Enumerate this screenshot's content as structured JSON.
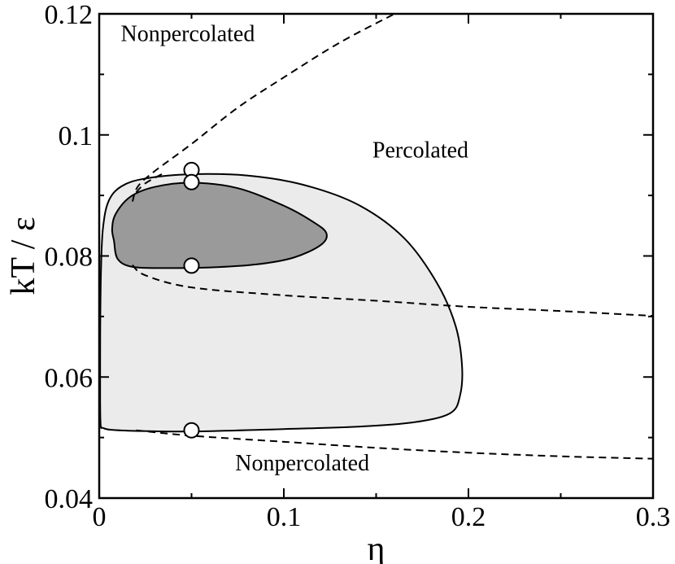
{
  "chart_data": {
    "type": "line",
    "xlabel": "η",
    "ylabel": "kT / ε",
    "xlim": [
      0,
      0.3
    ],
    "ylim": [
      0.04,
      0.12
    ],
    "xticks": [
      "0",
      "0.1",
      "0.2",
      "0.3"
    ],
    "yticks": [
      "0.04",
      "0.06",
      "0.08",
      "0.1",
      "0.12"
    ],
    "annotations": [
      {
        "text": "Nonpercolated",
        "x": 0.048,
        "y": 0.1155
      },
      {
        "text": "Percolated",
        "x": 0.174,
        "y": 0.0963
      },
      {
        "text": "Nonpercolated",
        "x": 0.11,
        "y": 0.0446
      }
    ],
    "series": [
      {
        "role": "outer-region-boundary",
        "style": "solid",
        "fill": "#ebebeb",
        "points": [
          [
            0.0008,
            0.052
          ],
          [
            0.0005,
            0.056
          ],
          [
            0.0005,
            0.062
          ],
          [
            0.0006,
            0.07
          ],
          [
            0.001,
            0.078
          ],
          [
            0.002,
            0.0845
          ],
          [
            0.005,
            0.089
          ],
          [
            0.012,
            0.0915
          ],
          [
            0.025,
            0.0928
          ],
          [
            0.05,
            0.0935
          ],
          [
            0.08,
            0.0933
          ],
          [
            0.11,
            0.0918
          ],
          [
            0.14,
            0.0885
          ],
          [
            0.165,
            0.083
          ],
          [
            0.183,
            0.0755
          ],
          [
            0.193,
            0.0685
          ],
          [
            0.1965,
            0.062
          ],
          [
            0.1955,
            0.057
          ],
          [
            0.19,
            0.054
          ],
          [
            0.17,
            0.0525
          ],
          [
            0.14,
            0.0518
          ],
          [
            0.1,
            0.0514
          ],
          [
            0.05,
            0.051
          ],
          [
            0.02,
            0.0511
          ],
          [
            0.006,
            0.0513
          ],
          [
            0.002,
            0.0516
          ],
          [
            0.0008,
            0.052
          ]
        ]
      },
      {
        "role": "inner-region-boundary",
        "style": "solid",
        "fill": "#9a9a9a",
        "points": [
          [
            0.008,
            0.0825
          ],
          [
            0.007,
            0.0845
          ],
          [
            0.009,
            0.087
          ],
          [
            0.017,
            0.0898
          ],
          [
            0.03,
            0.0914
          ],
          [
            0.05,
            0.0921
          ],
          [
            0.075,
            0.0912
          ],
          [
            0.1,
            0.0883
          ],
          [
            0.115,
            0.0858
          ],
          [
            0.123,
            0.0838
          ],
          [
            0.12,
            0.0818
          ],
          [
            0.105,
            0.0797
          ],
          [
            0.085,
            0.0786
          ],
          [
            0.06,
            0.0781
          ],
          [
            0.035,
            0.078
          ],
          [
            0.018,
            0.0782
          ],
          [
            0.01,
            0.0795
          ],
          [
            0.008,
            0.0825
          ]
        ]
      },
      {
        "role": "upper-dashed-curve",
        "style": "dashed",
        "points": [
          [
            0.018,
            0.089
          ],
          [
            0.021,
            0.0915
          ],
          [
            0.03,
            0.094
          ],
          [
            0.05,
            0.0985
          ],
          [
            0.075,
            0.1045
          ],
          [
            0.1,
            0.1095
          ],
          [
            0.13,
            0.1152
          ],
          [
            0.16,
            0.12
          ]
        ]
      },
      {
        "role": "middle-dashed-curve",
        "style": "dashed",
        "points": [
          [
            0.02,
            0.0905
          ],
          [
            0.025,
            0.092
          ],
          [
            0.035,
            0.0937
          ]
        ]
      },
      {
        "role": "lower-left-dashed-curve",
        "style": "dashed",
        "points": [
          [
            0.018,
            0.0785
          ],
          [
            0.025,
            0.0768
          ],
          [
            0.05,
            0.0748
          ],
          [
            0.1,
            0.0735
          ],
          [
            0.15,
            0.0726
          ],
          [
            0.2,
            0.0716
          ],
          [
            0.25,
            0.0709
          ],
          [
            0.3,
            0.0701
          ]
        ]
      },
      {
        "role": "bottom-dashed-curve",
        "style": "dashed",
        "points": [
          [
            0.02,
            0.0512
          ],
          [
            0.05,
            0.0503
          ],
          [
            0.1,
            0.0493
          ],
          [
            0.15,
            0.0483
          ],
          [
            0.2,
            0.0475
          ],
          [
            0.25,
            0.0469
          ],
          [
            0.3,
            0.0465
          ]
        ]
      }
    ],
    "markers": [
      {
        "x": 0.05,
        "y": 0.0942
      },
      {
        "x": 0.05,
        "y": 0.0922
      },
      {
        "x": 0.05,
        "y": 0.0784
      },
      {
        "x": 0.05,
        "y": 0.0512
      }
    ],
    "grid": false
  }
}
